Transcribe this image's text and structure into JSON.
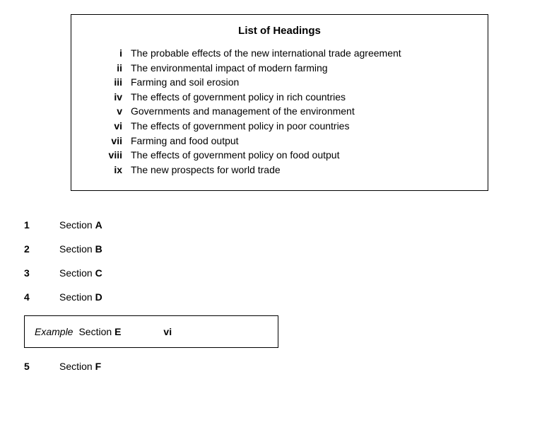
{
  "headingsBox": {
    "title": "List of Headings",
    "items": [
      {
        "roman": "i",
        "text": "The probable effects of the new international trade agreement"
      },
      {
        "roman": "ii",
        "text": "The environmental impact of modern farming"
      },
      {
        "roman": "iii",
        "text": "Farming and soil erosion"
      },
      {
        "roman": "iv",
        "text": "The effects of government policy in rich countries"
      },
      {
        "roman": "v",
        "text": "Governments and management of the environment"
      },
      {
        "roman": "vi",
        "text": "The effects of government policy in poor countries"
      },
      {
        "roman": "vii",
        "text": "Farming and food output"
      },
      {
        "roman": "viii",
        "text": "The effects of government policy on food output"
      },
      {
        "roman": "ix",
        "text": "The new prospects for world trade"
      }
    ]
  },
  "questions": [
    {
      "num": "1",
      "label": "Section ",
      "section": "A"
    },
    {
      "num": "2",
      "label": "Section ",
      "section": "B"
    },
    {
      "num": "3",
      "label": "Section ",
      "section": "C"
    },
    {
      "num": "4",
      "label": "Section ",
      "section": "D"
    }
  ],
  "example": {
    "label": "Example",
    "sectionLabel": "Section ",
    "sectionLetter": "E",
    "answer": "vi"
  },
  "afterExample": [
    {
      "num": "5",
      "label": "Section ",
      "section": "F"
    }
  ],
  "colors": {
    "background": "#ffffff",
    "text": "#000000",
    "border": "#000000"
  },
  "typography": {
    "fontFamily": "Arial, Helvetica, sans-serif",
    "baseFontSize": 14,
    "titleFontSize": 15
  }
}
